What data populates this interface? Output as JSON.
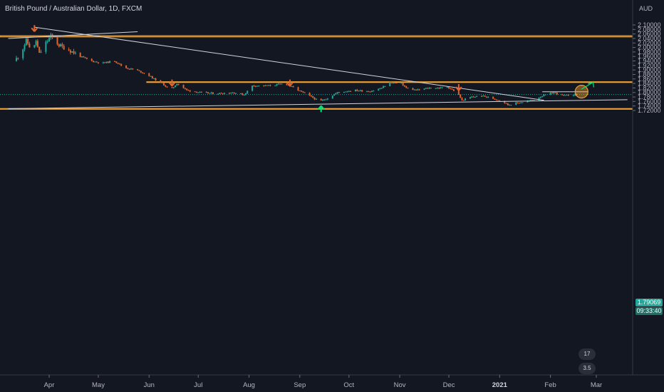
{
  "header": {
    "symbol_title": "British Pound / Australian Dollar, 1D, FXCM",
    "currency": "AUD"
  },
  "price_labels": {
    "last_price": "1.79069",
    "countdown": "09:33:40"
  },
  "colors": {
    "up": "#26a69a",
    "down": "#e0642f",
    "background": "#131722",
    "zone": "#f0a030",
    "arrow_down": "#e0642f",
    "arrow_up": "#00e676"
  },
  "chart_data": {
    "type": "candlestick",
    "title": "British Pound / Australian Dollar, 1D, FXCM",
    "xlabel": "",
    "ylabel": "",
    "ylim": [
      1.715,
      2.115
    ],
    "yticks": [
      "2.10000",
      "2.08000",
      "2.06000",
      "2.04000",
      "2.02000",
      "2.00000",
      "1.98000",
      "1.96000",
      "1.94000",
      "1.92000",
      "1.90000",
      "1.88000",
      "1.86000",
      "1.84000",
      "1.82000",
      "1.80000",
      "1.78000",
      "1.76000",
      "1.74000",
      "1.72000"
    ],
    "xticks": [
      "Apr",
      "May",
      "Jun",
      "Jul",
      "Aug",
      "Sep",
      "Oct",
      "Nov",
      "Dec",
      "2021",
      "Feb",
      "Mar"
    ],
    "price_path": [
      [
        "2020-03-12",
        1.94
      ],
      [
        "2020-03-16",
        1.98
      ],
      [
        "2020-03-19",
        2.03
      ],
      [
        "2020-03-23",
        1.98
      ],
      [
        "2020-03-25",
        2.03
      ],
      [
        "2020-03-27",
        1.97
      ],
      [
        "2020-03-31",
        2.02
      ],
      [
        "2020-04-03",
        2.05
      ],
      [
        "2020-04-08",
        2.01
      ],
      [
        "2020-04-14",
        1.99
      ],
      [
        "2020-04-21",
        1.96
      ],
      [
        "2020-04-28",
        1.94
      ],
      [
        "2020-05-04",
        1.93
      ],
      [
        "2020-05-12",
        1.94
      ],
      [
        "2020-05-18",
        1.91
      ],
      [
        "2020-05-25",
        1.9
      ],
      [
        "2020-06-01",
        1.88
      ],
      [
        "2020-06-05",
        1.86
      ],
      [
        "2020-06-10",
        1.84
      ],
      [
        "2020-06-15",
        1.81
      ],
      [
        "2020-06-19",
        1.84
      ],
      [
        "2020-06-25",
        1.81
      ],
      [
        "2020-07-03",
        1.8
      ],
      [
        "2020-07-13",
        1.795
      ],
      [
        "2020-07-23",
        1.8
      ],
      [
        "2020-07-30",
        1.79
      ],
      [
        "2020-08-04",
        1.83
      ],
      [
        "2020-08-14",
        1.83
      ],
      [
        "2020-08-24",
        1.84
      ],
      [
        "2020-09-01",
        1.81
      ],
      [
        "2020-09-08",
        1.785
      ],
      [
        "2020-09-14",
        1.76
      ],
      [
        "2020-09-19",
        1.775
      ],
      [
        "2020-09-25",
        1.8
      ],
      [
        "2020-10-05",
        1.81
      ],
      [
        "2020-10-15",
        1.805
      ],
      [
        "2020-10-22",
        1.82
      ],
      [
        "2020-10-27",
        1.845
      ],
      [
        "2020-11-03",
        1.84
      ],
      [
        "2020-11-06",
        1.82
      ],
      [
        "2020-11-12",
        1.81
      ],
      [
        "2020-11-20",
        1.82
      ],
      [
        "2020-11-27",
        1.82
      ],
      [
        "2020-12-01",
        1.825
      ],
      [
        "2020-12-07",
        1.8
      ],
      [
        "2020-12-10",
        1.765
      ],
      [
        "2020-12-16",
        1.78
      ],
      [
        "2020-12-22",
        1.785
      ],
      [
        "2020-12-28",
        1.775
      ],
      [
        "2021-01-04",
        1.76
      ],
      [
        "2021-01-07",
        1.745
      ],
      [
        "2021-01-14",
        1.755
      ],
      [
        "2021-01-22",
        1.765
      ],
      [
        "2021-01-28",
        1.785
      ],
      [
        "2021-02-04",
        1.8
      ],
      [
        "2021-02-10",
        1.785
      ],
      [
        "2021-02-17",
        1.791
      ]
    ],
    "annotations": {
      "resistance_zone_top": [
        2.047,
        2.052
      ],
      "resistance_zone_mid": [
        1.8445,
        1.8475
      ],
      "support_zone_bottom": [
        1.7255,
        1.7285
      ],
      "descending_trendline": [
        [
          "2020-03-23",
          2.09
        ],
        [
          "2021-01-28",
          1.7655
        ]
      ],
      "ascending_trendline": [
        [
          "2020-03-07",
          1.728
        ],
        [
          "2021-03-20",
          1.768
        ]
      ],
      "early_trendline": [
        [
          "2020-03-07",
          2.04
        ],
        [
          "2020-05-25",
          2.07
        ]
      ],
      "short_resistance_line": [
        [
          "2021-01-27",
          1.803
        ],
        [
          "2021-02-24",
          1.803
        ]
      ],
      "target_circle": [
        "2021-02-20",
        1.8035
      ],
      "target_arrow": [
        [
          "2021-02-20",
          1.815
        ],
        [
          "2021-02-27",
          1.845
        ]
      ],
      "down_arrows": [
        [
          "2020-03-23",
          2.093
        ],
        [
          "2020-06-15",
          1.851
        ],
        [
          "2020-08-26",
          1.851
        ],
        [
          "2020-12-07",
          1.831
        ]
      ],
      "up_arrows": [
        [
          "2020-09-14",
          1.741
        ]
      ],
      "last_price_line": 1.79069
    }
  },
  "badges": {
    "badge_a": "17",
    "badge_b": "3.5"
  }
}
